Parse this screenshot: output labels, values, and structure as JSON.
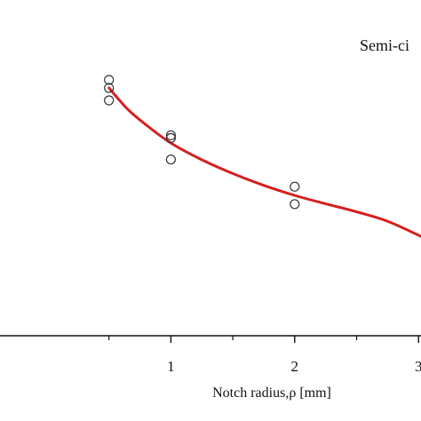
{
  "chart_data": {
    "type": "scatter",
    "xlabel": "Notch radius,ρ [mm]",
    "ylabel": "",
    "title": "",
    "annotation": "Semi-ci",
    "x_ticks": [
      1,
      2,
      3
    ],
    "x_tick_labels": [
      "1",
      "2",
      "3"
    ],
    "x_minor_ticks": [
      0.5,
      1.5,
      2.5
    ],
    "xlim": [
      -0.38,
      3.02
    ],
    "ylim": [
      0,
      100
    ],
    "grid": false,
    "legend": "none",
    "series": [
      {
        "type": "scatter",
        "marker": "open-circle",
        "color": "#333333",
        "points": [
          {
            "x": 0.5,
            "y": 76.2
          },
          {
            "x": 0.5,
            "y": 73.8
          },
          {
            "x": 0.5,
            "y": 70.1
          },
          {
            "x": 1.0,
            "y": 59.7
          },
          {
            "x": 1.0,
            "y": 58.9
          },
          {
            "x": 1.0,
            "y": 52.5
          },
          {
            "x": 2.0,
            "y": 44.4
          },
          {
            "x": 2.0,
            "y": 39.2
          }
        ]
      },
      {
        "type": "line",
        "color": "#d42020",
        "curve": "fit",
        "x": [
          0.5,
          0.65,
          0.8,
          1.0,
          1.25,
          1.5,
          1.75,
          2.0,
          2.25,
          2.5,
          2.75,
          3.02
        ],
        "y": [
          73.8,
          67.5,
          62.8,
          57.4,
          52.4,
          48.3,
          44.8,
          41.8,
          39.3,
          36.9,
          34.1,
          29.6
        ]
      }
    ]
  }
}
